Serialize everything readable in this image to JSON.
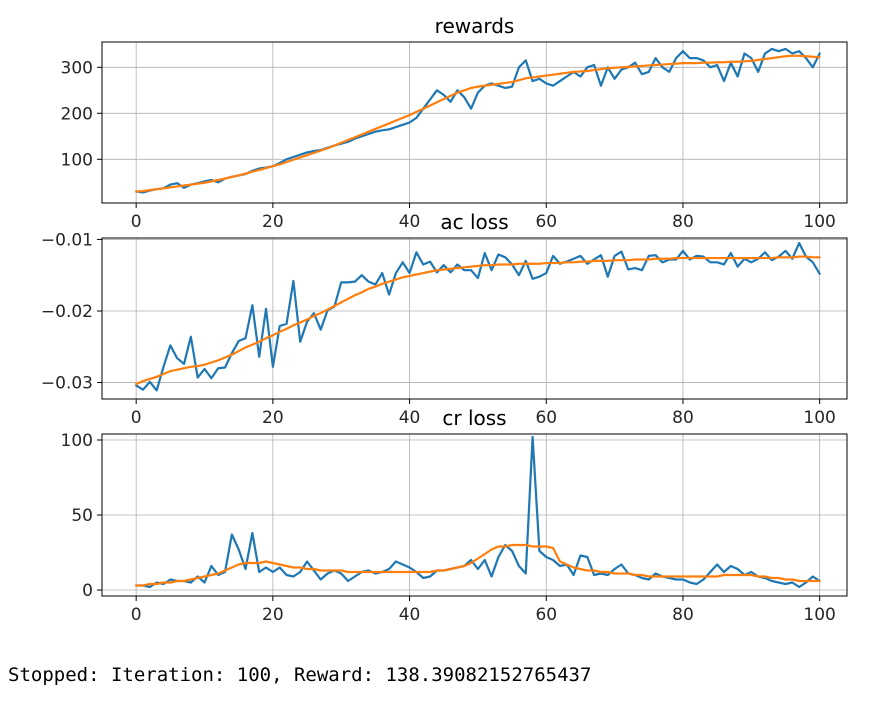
{
  "chart_data": [
    {
      "type": "line",
      "title": "rewards",
      "xlim": [
        -5,
        104
      ],
      "ylim": [
        5,
        355
      ],
      "xticks": [
        0,
        20,
        40,
        60,
        80,
        100
      ],
      "yticks": [
        100,
        200,
        300
      ],
      "grid": true,
      "series": [
        {
          "color": "#1f77b4",
          "x_start": 0,
          "values": [
            30,
            28,
            32,
            35,
            37,
            45,
            48,
            38,
            45,
            48,
            52,
            55,
            50,
            58,
            62,
            65,
            68,
            75,
            80,
            82,
            85,
            92,
            100,
            105,
            110,
            115,
            118,
            120,
            125,
            130,
            134,
            138,
            145,
            150,
            155,
            160,
            163,
            165,
            170,
            175,
            180,
            190,
            210,
            230,
            250,
            240,
            225,
            250,
            235,
            210,
            245,
            260,
            265,
            260,
            255,
            258,
            300,
            315,
            270,
            275,
            265,
            260,
            270,
            280,
            290,
            280,
            300,
            305,
            260,
            300,
            275,
            295,
            300,
            310,
            285,
            290,
            320,
            300,
            290,
            320,
            335,
            320,
            320,
            315,
            300,
            305,
            270,
            310,
            280,
            330,
            320,
            290,
            330,
            340,
            335,
            340,
            330,
            335,
            320,
            300,
            330
          ]
        },
        {
          "color": "#ff7f0e",
          "x_start": 0,
          "values": [
            30,
            31,
            33,
            35,
            37,
            39,
            41,
            43,
            45,
            47,
            49,
            52,
            55,
            58,
            62,
            65,
            69,
            73,
            77,
            81,
            85,
            89,
            94,
            99,
            104,
            109,
            114,
            119,
            124,
            130,
            136,
            142,
            148,
            154,
            160,
            166,
            172,
            178,
            184,
            190,
            196,
            203,
            210,
            217,
            224,
            231,
            238,
            245,
            250,
            255,
            258,
            260,
            262,
            264,
            266,
            268,
            272,
            276,
            278,
            280,
            282,
            284,
            286,
            288,
            290,
            291,
            292,
            294,
            296,
            298,
            299,
            300,
            301,
            302,
            303,
            304,
            305,
            306,
            307,
            308,
            309,
            309,
            309,
            310,
            310,
            311,
            311,
            312,
            312,
            313,
            314,
            316,
            318,
            320,
            322,
            324,
            325,
            325,
            324,
            323,
            322
          ]
        }
      ]
    },
    {
      "type": "line",
      "title": "ac loss",
      "xlim": [
        -5,
        104
      ],
      "ylim": [
        -0.0323,
        -0.0098
      ],
      "xticks": [
        0,
        20,
        40,
        60,
        80,
        100
      ],
      "yticks": [
        -0.01,
        -0.02,
        -0.03
      ],
      "ytick_labels": [
        "−0.01",
        "−0.02",
        "−0.03"
      ],
      "grid": true,
      "series": [
        {
          "color": "#1f77b4",
          "x_start": 0,
          "values": [
            -0.0304,
            -0.031,
            -0.0299,
            -0.0311,
            -0.0278,
            -0.0248,
            -0.0266,
            -0.0274,
            -0.0236,
            -0.0293,
            -0.0281,
            -0.0294,
            -0.028,
            -0.0279,
            -0.0259,
            -0.0242,
            -0.0238,
            -0.0192,
            -0.0264,
            -0.0197,
            -0.0278,
            -0.0221,
            -0.0218,
            -0.0158,
            -0.0243,
            -0.0215,
            -0.0203,
            -0.0226,
            -0.0199,
            -0.0194,
            -0.016,
            -0.016,
            -0.0159,
            -0.015,
            -0.0159,
            -0.0163,
            -0.0147,
            -0.0177,
            -0.0147,
            -0.0132,
            -0.0147,
            -0.0118,
            -0.0135,
            -0.0131,
            -0.0146,
            -0.0136,
            -0.0146,
            -0.0135,
            -0.0143,
            -0.0143,
            -0.0154,
            -0.0119,
            -0.0143,
            -0.0121,
            -0.0125,
            -0.0135,
            -0.015,
            -0.013,
            -0.0155,
            -0.0152,
            -0.0147,
            -0.0123,
            -0.0134,
            -0.0131,
            -0.0127,
            -0.0123,
            -0.0134,
            -0.0128,
            -0.0122,
            -0.0152,
            -0.0123,
            -0.0117,
            -0.0142,
            -0.014,
            -0.0143,
            -0.0123,
            -0.0122,
            -0.0132,
            -0.0128,
            -0.0128,
            -0.0116,
            -0.0128,
            -0.0123,
            -0.0124,
            -0.0132,
            -0.0132,
            -0.0135,
            -0.0119,
            -0.0138,
            -0.0127,
            -0.0132,
            -0.0127,
            -0.0118,
            -0.0129,
            -0.0124,
            -0.0116,
            -0.0127,
            -0.0105,
            -0.0124,
            -0.0132,
            -0.0148
          ]
        },
        {
          "color": "#ff7f0e",
          "x_start": 0,
          "values": [
            -0.0302,
            -0.0298,
            -0.0295,
            -0.0292,
            -0.0288,
            -0.0284,
            -0.0282,
            -0.028,
            -0.0278,
            -0.0277,
            -0.0275,
            -0.0272,
            -0.0269,
            -0.0265,
            -0.0261,
            -0.0256,
            -0.0251,
            -0.0247,
            -0.0243,
            -0.0238,
            -0.0234,
            -0.0229,
            -0.0225,
            -0.022,
            -0.0216,
            -0.0212,
            -0.0207,
            -0.0203,
            -0.0198,
            -0.0193,
            -0.0188,
            -0.0183,
            -0.0178,
            -0.0174,
            -0.0169,
            -0.0166,
            -0.0162,
            -0.0159,
            -0.0156,
            -0.0153,
            -0.0151,
            -0.0149,
            -0.0147,
            -0.0145,
            -0.0143,
            -0.0142,
            -0.0141,
            -0.014,
            -0.0139,
            -0.0138,
            -0.0137,
            -0.0136,
            -0.0136,
            -0.0135,
            -0.0135,
            -0.0135,
            -0.0134,
            -0.0134,
            -0.0134,
            -0.0134,
            -0.0133,
            -0.0133,
            -0.0133,
            -0.0132,
            -0.0132,
            -0.0131,
            -0.0131,
            -0.013,
            -0.013,
            -0.013,
            -0.0129,
            -0.0129,
            -0.0129,
            -0.0128,
            -0.0128,
            -0.0128,
            -0.0127,
            -0.0127,
            -0.0127,
            -0.0126,
            -0.0126,
            -0.0126,
            -0.0126,
            -0.0126,
            -0.0126,
            -0.0126,
            -0.0126,
            -0.0126,
            -0.0126,
            -0.0126,
            -0.0126,
            -0.0126,
            -0.0126,
            -0.0126,
            -0.0125,
            -0.0125,
            -0.0125,
            -0.0124,
            -0.0124,
            -0.0125,
            -0.0125
          ]
        }
      ]
    },
    {
      "type": "line",
      "title": "cr loss",
      "xlim": [
        -5,
        104
      ],
      "ylim": [
        -4,
        104
      ],
      "xticks": [
        0,
        20,
        40,
        60,
        80,
        100
      ],
      "yticks": [
        0,
        50,
        100
      ],
      "grid": true,
      "series": [
        {
          "color": "#1f77b4",
          "x_start": 0,
          "values": [
            3,
            3,
            2,
            5,
            4,
            7,
            6,
            6,
            5,
            9,
            5,
            16,
            10,
            12,
            37,
            27,
            14,
            38,
            12,
            15,
            12,
            15,
            10,
            9,
            12,
            19,
            13,
            7,
            11,
            13,
            11,
            6,
            9,
            12,
            13,
            11,
            12,
            14,
            19,
            17,
            15,
            12,
            8,
            9,
            13,
            13,
            14,
            15,
            16,
            20,
            14,
            20,
            9,
            22,
            30,
            26,
            16,
            11,
            102,
            26,
            22,
            20,
            16,
            17,
            10,
            23,
            22,
            10,
            11,
            10,
            14,
            17,
            11,
            10,
            8,
            7,
            11,
            9,
            8,
            7,
            7,
            5,
            4,
            7,
            12,
            17,
            12,
            16,
            14,
            10,
            12,
            9,
            8,
            6,
            5,
            4,
            5,
            2,
            5,
            9,
            6
          ]
        },
        {
          "color": "#ff7f0e",
          "x_start": 0,
          "values": [
            3,
            3,
            4,
            4,
            5,
            5,
            6,
            6,
            7,
            8,
            9,
            10,
            11,
            13,
            15,
            17,
            18,
            18,
            18,
            19,
            18,
            17,
            16,
            15,
            15,
            14,
            14,
            13,
            13,
            13,
            13,
            12,
            12,
            12,
            12,
            12,
            12,
            12,
            12,
            12,
            12,
            12,
            12,
            12,
            13,
            13,
            14,
            15,
            16,
            18,
            21,
            24,
            27,
            29,
            29,
            30,
            30,
            30,
            29,
            29,
            29,
            28,
            19,
            17,
            15,
            14,
            13,
            13,
            12,
            12,
            11,
            11,
            11,
            10,
            10,
            9,
            9,
            9,
            9,
            9,
            9,
            9,
            9,
            9,
            9,
            9,
            10,
            10,
            10,
            10,
            10,
            9,
            9,
            8,
            8,
            7,
            7,
            6,
            6,
            6,
            6
          ]
        }
      ]
    }
  ],
  "status_text": "Stopped: Iteration: 100, Reward: 138.39082152765437"
}
